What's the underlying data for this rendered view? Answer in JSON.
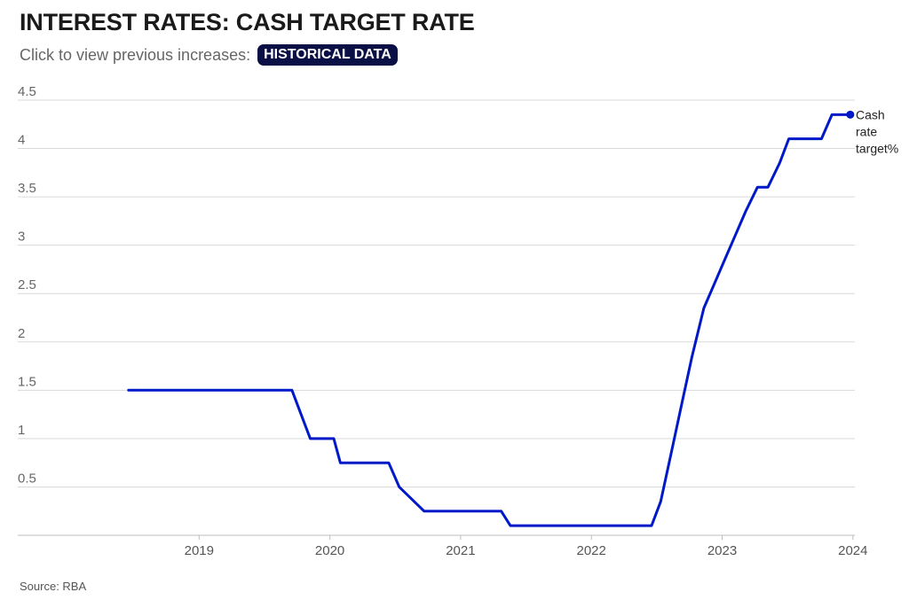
{
  "header": {
    "title": "INTEREST RATES: CASH TARGET RATE",
    "subtitle": "Click to view previous increases:",
    "button_label": "HISTORICAL DATA"
  },
  "footer": {
    "source": "Source: RBA"
  },
  "colors": {
    "line": "#0019c8",
    "button_bg": "#0a1045",
    "grid": "#d9d9d9"
  },
  "chart_data": {
    "type": "line",
    "title": "INTEREST RATES: CASH TARGET RATE",
    "xlabel": "",
    "ylabel": "",
    "xlim": [
      2018.0,
      2024.0
    ],
    "ylim": [
      0,
      4.5
    ],
    "yticks": [
      0.5,
      1,
      1.5,
      2,
      2.5,
      3,
      3.5,
      4,
      4.5
    ],
    "ytick_labels": [
      "0.5",
      "1",
      "1.5",
      "2",
      "2.5",
      "3",
      "3.5",
      "4",
      "4.5"
    ],
    "xticks": [
      2019,
      2020,
      2021,
      2022,
      2023,
      2024
    ],
    "xtick_labels": [
      "2019",
      "2020",
      "2021",
      "2022",
      "2023",
      "2024"
    ],
    "grid": true,
    "legend": "end-of-line label",
    "series": [
      {
        "name": "Cash rate target%",
        "x": [
          2018.46,
          2019.71,
          2019.85,
          2020.03,
          2020.08,
          2020.45,
          2020.53,
          2020.72,
          2020.76,
          2021.31,
          2021.38,
          2022.46,
          2022.53,
          2022.61,
          2022.69,
          2022.77,
          2022.86,
          2022.94,
          2023.02,
          2023.1,
          2023.18,
          2023.27,
          2023.35,
          2023.44,
          2023.51,
          2023.59,
          2023.67,
          2023.76,
          2023.84,
          2023.93,
          2023.98
        ],
        "y": [
          1.5,
          1.5,
          1.0,
          1.0,
          0.75,
          0.75,
          0.5,
          0.25,
          0.25,
          0.25,
          0.1,
          0.1,
          0.35,
          0.85,
          1.35,
          1.85,
          2.35,
          2.6,
          2.85,
          3.1,
          3.35,
          3.6,
          3.6,
          3.85,
          4.1,
          4.1,
          4.1,
          4.1,
          4.35,
          4.35,
          4.35
        ]
      }
    ]
  }
}
